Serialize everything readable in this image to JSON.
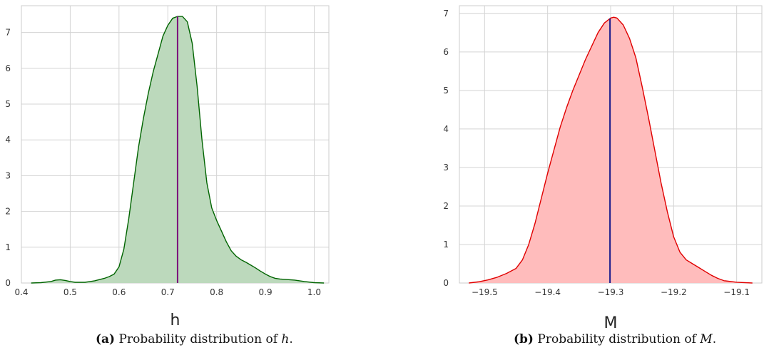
{
  "chart_data": [
    {
      "type": "area",
      "xlabel": "h",
      "ylabel": "",
      "xlim": [
        0.4,
        1.03
      ],
      "ylim": [
        0,
        7.75
      ],
      "x_ticks": [
        0.4,
        0.5,
        0.6,
        0.7,
        0.8,
        0.9,
        1.0
      ],
      "x_tick_labels": [
        "0.4",
        "0.5",
        "0.6",
        "0.7",
        "0.8",
        "0.9",
        "1.0"
      ],
      "y_ticks": [
        0,
        1,
        2,
        3,
        4,
        5,
        6,
        7
      ],
      "y_tick_labels": [
        "0",
        "1",
        "2",
        "3",
        "4",
        "5",
        "6",
        "7"
      ],
      "grid": true,
      "line_color": "#006400",
      "fill_color": "#bcd9bc",
      "marker_line": {
        "x": 0.72,
        "color": "#7b0b7b"
      },
      "series": [
        {
          "x": [
            0.42,
            0.44,
            0.46,
            0.47,
            0.48,
            0.49,
            0.5,
            0.51,
            0.53,
            0.55,
            0.57,
            0.58,
            0.59,
            0.6,
            0.61,
            0.62,
            0.63,
            0.64,
            0.65,
            0.66,
            0.67,
            0.68,
            0.69,
            0.7,
            0.71,
            0.72,
            0.73,
            0.74,
            0.75,
            0.76,
            0.77,
            0.78,
            0.79,
            0.8,
            0.81,
            0.82,
            0.83,
            0.84,
            0.85,
            0.86,
            0.87,
            0.88,
            0.89,
            0.9,
            0.91,
            0.92,
            0.93,
            0.94,
            0.95,
            0.96,
            0.97,
            0.98,
            1.0,
            1.02
          ],
          "values": [
            0.0,
            0.01,
            0.04,
            0.08,
            0.09,
            0.07,
            0.04,
            0.02,
            0.02,
            0.06,
            0.13,
            0.18,
            0.25,
            0.45,
            0.95,
            1.8,
            2.8,
            3.8,
            4.6,
            5.3,
            5.9,
            6.4,
            6.9,
            7.2,
            7.4,
            7.45,
            7.45,
            7.3,
            6.7,
            5.5,
            4.0,
            2.8,
            2.1,
            1.75,
            1.45,
            1.15,
            0.9,
            0.75,
            0.65,
            0.58,
            0.5,
            0.42,
            0.33,
            0.25,
            0.18,
            0.13,
            0.11,
            0.1,
            0.09,
            0.08,
            0.06,
            0.04,
            0.01,
            0.0
          ]
        }
      ]
    },
    {
      "type": "area",
      "xlabel": "M",
      "ylabel": "",
      "xlim": [
        -19.54,
        -19.06
      ],
      "ylim": [
        0,
        7.2
      ],
      "x_ticks": [
        -19.5,
        -19.4,
        -19.3,
        -19.2,
        -19.1
      ],
      "x_tick_labels": [
        "−19.5",
        "−19.4",
        "−19.3",
        "−19.2",
        "−19.1"
      ],
      "y_ticks": [
        0,
        1,
        2,
        3,
        4,
        5,
        6,
        7
      ],
      "y_tick_labels": [
        "0",
        "1",
        "2",
        "3",
        "4",
        "5",
        "6",
        "7"
      ],
      "grid": true,
      "line_color": "#e00000",
      "fill_color": "#ffbcbc",
      "marker_line": {
        "x": -19.301,
        "color": "#1a1a8c"
      },
      "series": [
        {
          "x": [
            -19.525,
            -19.51,
            -19.495,
            -19.48,
            -19.465,
            -19.45,
            -19.44,
            -19.43,
            -19.42,
            -19.41,
            -19.4,
            -19.39,
            -19.38,
            -19.37,
            -19.36,
            -19.35,
            -19.34,
            -19.33,
            -19.32,
            -19.31,
            -19.3,
            -19.295,
            -19.29,
            -19.28,
            -19.27,
            -19.26,
            -19.25,
            -19.24,
            -19.23,
            -19.22,
            -19.21,
            -19.2,
            -19.19,
            -19.18,
            -19.17,
            -19.16,
            -19.15,
            -19.14,
            -19.13,
            -19.12,
            -19.1,
            -19.075
          ],
          "values": [
            0.0,
            0.03,
            0.08,
            0.15,
            0.25,
            0.38,
            0.6,
            1.0,
            1.55,
            2.2,
            2.85,
            3.45,
            4.05,
            4.55,
            5.0,
            5.4,
            5.8,
            6.15,
            6.5,
            6.75,
            6.88,
            6.9,
            6.88,
            6.7,
            6.35,
            5.85,
            5.1,
            4.3,
            3.45,
            2.6,
            1.85,
            1.2,
            0.8,
            0.6,
            0.5,
            0.4,
            0.3,
            0.2,
            0.12,
            0.06,
            0.02,
            0.0
          ]
        }
      ]
    }
  ],
  "captions": [
    {
      "label": "(a)",
      "text": "Probability distribution of ",
      "var": "h",
      "end": "."
    },
    {
      "label": "(b)",
      "text": "Probability distribution of ",
      "var": "M",
      "end": "."
    }
  ]
}
